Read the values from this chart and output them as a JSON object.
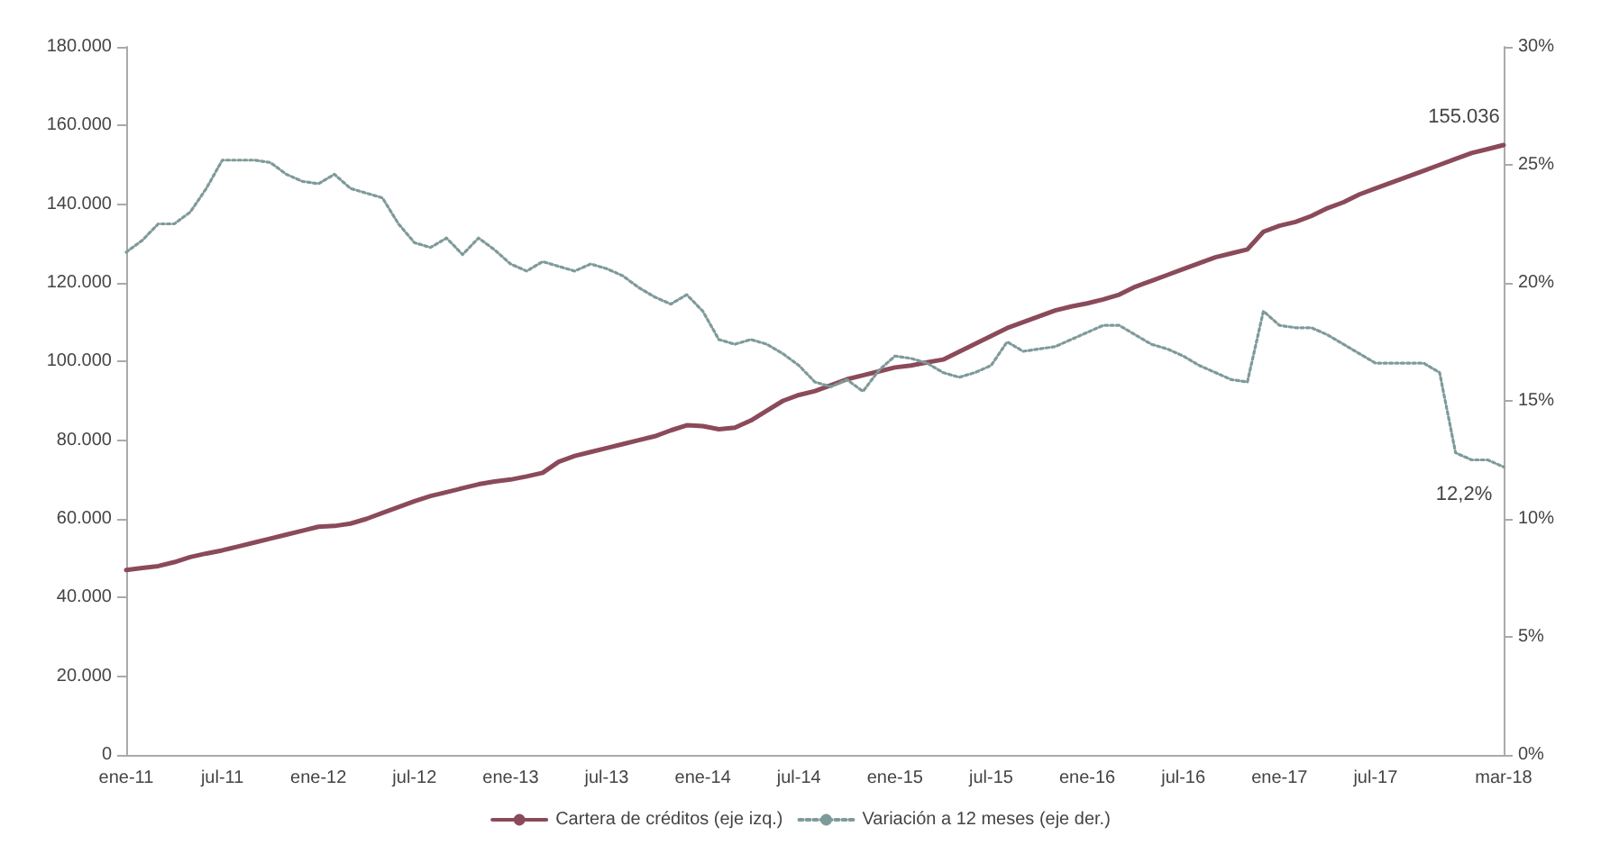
{
  "chart_data": {
    "type": "line",
    "categories": [
      "ene-11",
      null,
      null,
      null,
      null,
      null,
      "jul-11",
      null,
      null,
      null,
      null,
      null,
      "ene-12",
      null,
      null,
      null,
      null,
      null,
      "jul-12",
      null,
      null,
      null,
      null,
      null,
      "ene-13",
      null,
      null,
      null,
      null,
      null,
      "jul-13",
      null,
      null,
      null,
      null,
      null,
      "ene-14",
      null,
      null,
      null,
      null,
      null,
      "jul-14",
      null,
      null,
      null,
      null,
      null,
      "ene-15",
      null,
      null,
      null,
      null,
      null,
      "jul-15",
      null,
      null,
      null,
      null,
      null,
      "ene-16",
      null,
      null,
      null,
      null,
      null,
      "jul-16",
      null,
      null,
      null,
      null,
      null,
      "ene-17",
      null,
      null,
      null,
      null,
      null,
      "jul-17",
      null,
      null,
      null,
      null,
      null,
      null,
      null,
      "mar-18"
    ],
    "series": [
      {
        "name": "Cartera de créditos (eje izq.)",
        "color": "#8b4a5a",
        "line_style": "solid",
        "values": [
          47000,
          47500,
          48000,
          49000,
          50300,
          51200,
          52000,
          53000,
          54000,
          55000,
          56000,
          57000,
          58000,
          58200,
          58800,
          60000,
          61500,
          63000,
          64500,
          65800,
          66800,
          67800,
          68800,
          69500,
          70000,
          70800,
          71700,
          74500,
          76000,
          77000,
          78000,
          79000,
          80000,
          81000,
          82500,
          83800,
          83600,
          82800,
          83200,
          85000,
          87500,
          90000,
          91500,
          92500,
          94000,
          95500,
          96500,
          97500,
          98500,
          99000,
          99800,
          100500,
          102500,
          104500,
          106500,
          108500,
          110000,
          111500,
          113000,
          114000,
          114800,
          115800,
          117000,
          119000,
          120500,
          122000,
          123500,
          125000,
          126500,
          127500,
          128500,
          133000,
          134500,
          135500,
          137000,
          139000,
          140500,
          142500,
          144000,
          145500,
          147000,
          148500,
          150000,
          151500,
          153000,
          154000,
          155036
        ],
        "value_labels": [
          null,
          null,
          null,
          null,
          null,
          null,
          null,
          null,
          null,
          null,
          null,
          null,
          null,
          null,
          null,
          null,
          null,
          null,
          null,
          null,
          null,
          null,
          null,
          null,
          null,
          null,
          null,
          null,
          null,
          null,
          null,
          null,
          null,
          null,
          null,
          null,
          null,
          null,
          null,
          null,
          null,
          null,
          null,
          null,
          null,
          null,
          null,
          null,
          null,
          null,
          null,
          null,
          null,
          null,
          null,
          null,
          null,
          null,
          null,
          null,
          null,
          null,
          null,
          null,
          null,
          null,
          null,
          null,
          null,
          null,
          null,
          null,
          null,
          null,
          null,
          null,
          null,
          null,
          null,
          null,
          null,
          null,
          null,
          null,
          null,
          null,
          "155.036"
        ]
      },
      {
        "name": "Variación a 12 meses (eje der.)",
        "color": "#7f9a9a",
        "line_style": "dotted",
        "axis": "y2",
        "values": [
          21.3,
          21.8,
          22.5,
          22.5,
          23.0,
          24.0,
          25.2,
          25.2,
          25.2,
          25.1,
          24.6,
          24.3,
          24.2,
          24.6,
          24.0,
          23.8,
          23.6,
          22.5,
          21.7,
          21.5,
          21.9,
          21.2,
          21.9,
          21.4,
          20.8,
          20.5,
          20.9,
          20.7,
          20.5,
          20.8,
          20.6,
          20.3,
          19.8,
          19.4,
          19.1,
          19.5,
          18.8,
          17.6,
          17.4,
          17.6,
          17.4,
          17.0,
          16.5,
          15.8,
          15.6,
          15.9,
          15.4,
          16.3,
          16.9,
          16.8,
          16.6,
          16.2,
          16.0,
          16.2,
          16.5,
          17.5,
          17.1,
          17.2,
          17.3,
          17.6,
          17.9,
          18.2,
          18.2,
          17.8,
          17.4,
          17.2,
          16.9,
          16.5,
          16.2,
          15.9,
          15.8,
          18.8,
          18.2,
          18.1,
          18.1,
          17.8,
          17.4,
          17.0,
          16.6,
          16.6,
          16.6,
          16.6,
          16.2,
          12.8,
          12.5,
          12.5,
          12.2
        ],
        "value_labels": [
          null,
          null,
          null,
          null,
          null,
          null,
          null,
          null,
          null,
          null,
          null,
          null,
          null,
          null,
          null,
          null,
          null,
          null,
          null,
          null,
          null,
          null,
          null,
          null,
          null,
          null,
          null,
          null,
          null,
          null,
          null,
          null,
          null,
          null,
          null,
          null,
          null,
          null,
          null,
          null,
          null,
          null,
          null,
          null,
          null,
          null,
          null,
          null,
          null,
          null,
          null,
          null,
          null,
          null,
          null,
          null,
          null,
          null,
          null,
          null,
          null,
          null,
          null,
          null,
          null,
          null,
          null,
          null,
          null,
          null,
          null,
          null,
          null,
          null,
          null,
          null,
          null,
          null,
          null,
          null,
          null,
          null,
          null,
          null,
          null,
          null,
          "12,2%"
        ]
      }
    ],
    "ylim": [
      0,
      180000
    ],
    "yticks": [
      {
        "value": 0,
        "label": "0"
      },
      {
        "value": 20000,
        "label": "20.000"
      },
      {
        "value": 40000,
        "label": "40.000"
      },
      {
        "value": 60000,
        "label": "60.000"
      },
      {
        "value": 80000,
        "label": "80.000"
      },
      {
        "value": 100000,
        "label": "100.000"
      },
      {
        "value": 120000,
        "label": "120.000"
      },
      {
        "value": 140000,
        "label": "140.000"
      },
      {
        "value": 160000,
        "label": "160.000"
      },
      {
        "value": 180000,
        "label": "180.000"
      }
    ],
    "y2lim": [
      0,
      30
    ],
    "y2ticks": [
      {
        "value": 0,
        "label": "0%"
      },
      {
        "value": 5,
        "label": "5%"
      },
      {
        "value": 10,
        "label": "10%"
      },
      {
        "value": 15,
        "label": "15%"
      },
      {
        "value": 20,
        "label": "20%"
      },
      {
        "value": 25,
        "label": "25%"
      },
      {
        "value": 30,
        "label": "30%"
      }
    ],
    "grid": false,
    "legend": "bottom",
    "marker": "none"
  }
}
